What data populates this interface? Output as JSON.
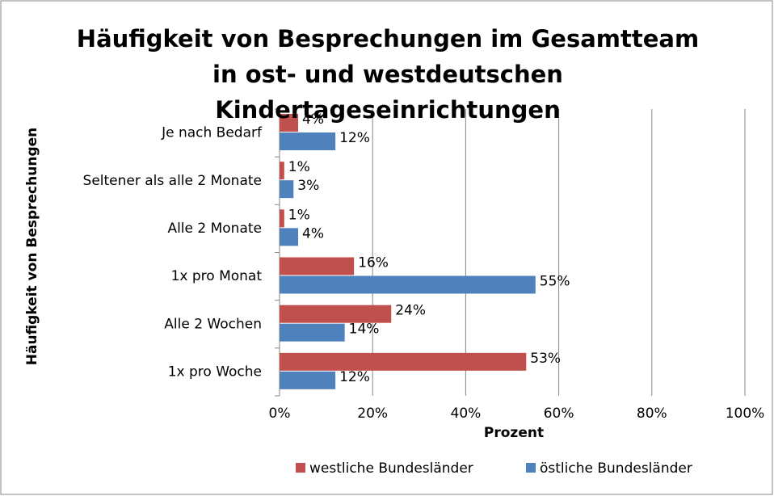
{
  "chart_data": {
    "type": "barh",
    "title": "Häufigkeit von Besprechungen im Gesamtteam in ost- und westdeutschen Kindertageseinrichtungen",
    "xlabel": "Prozent",
    "ylabel": "Häufigkeit von Besprechungen",
    "categories": [
      "Je nach Bedarf",
      "Seltener als alle 2 Monate",
      "Alle 2 Monate",
      "1x pro Monat",
      "Alle 2 Wochen",
      "1x pro Woche"
    ],
    "series": [
      {
        "name": "westliche Bundesländer",
        "color": "#c0504d",
        "values": [
          4,
          1,
          1,
          16,
          24,
          53
        ],
        "value_labels": [
          "4%",
          "1%",
          "1%",
          "16%",
          "24%",
          "53%"
        ]
      },
      {
        "name": "östliche Bundesländer",
        "color": "#4f81bd",
        "values": [
          12,
          3,
          4,
          55,
          14,
          12
        ],
        "value_labels": [
          "12%",
          "3%",
          "4%",
          "55%",
          "14%",
          "12%"
        ]
      }
    ],
    "xlim": [
      0,
      100
    ],
    "xticks": [
      {
        "value": 0,
        "label": "0%"
      },
      {
        "value": 20,
        "label": "20%"
      },
      {
        "value": 40,
        "label": "40%"
      },
      {
        "value": 60,
        "label": "60%"
      },
      {
        "value": 80,
        "label": "80%"
      },
      {
        "value": 100,
        "label": "100%"
      }
    ],
    "grid": true,
    "legend": "bottom"
  }
}
